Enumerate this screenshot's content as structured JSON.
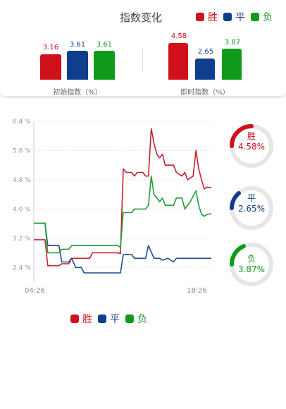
{
  "header": {
    "title": "指数变化"
  },
  "legend": [
    {
      "label": "胜",
      "color": "#d0101a"
    },
    {
      "label": "平",
      "color": "#0f3e8c"
    },
    {
      "label": "负",
      "color": "#109a1c"
    }
  ],
  "initial_group": {
    "caption": "初始指数（%）",
    "values": [
      "3.16",
      "3.61",
      "3.61"
    ]
  },
  "current_group": {
    "caption": "即时指数（%）",
    "values": [
      "4.58",
      "2.65",
      "3.87"
    ]
  },
  "gauges": [
    {
      "name": "胜",
      "pct": "4.58%",
      "color": "#d0101a"
    },
    {
      "name": "平",
      "pct": "2.65%",
      "color": "#0f3e8c"
    },
    {
      "name": "负",
      "pct": "3.87%",
      "color": "#109a1c"
    }
  ],
  "chart_data": {
    "type": "line",
    "x_start_label": "04:26",
    "x_end_label": "18:26",
    "ylim": [
      2.0,
      6.4
    ],
    "y_ticks": [
      {
        "label": "6.4 %",
        "value": 6.4
      },
      {
        "label": "5.6 %",
        "value": 5.6
      },
      {
        "label": "4.8 %",
        "value": 4.8
      },
      {
        "label": "4.0 %",
        "value": 4.0
      },
      {
        "label": "3.2 %",
        "value": 3.2
      },
      {
        "label": "2.4 %",
        "value": 2.4
      }
    ],
    "series": [
      {
        "name": "胜",
        "color": "#c8202a",
        "points": [
          [
            0,
            3.16
          ],
          [
            0.08,
            3.16
          ],
          [
            0.1,
            2.45
          ],
          [
            0.18,
            2.45
          ],
          [
            0.2,
            2.5
          ],
          [
            0.25,
            2.5
          ],
          [
            0.27,
            2.65
          ],
          [
            0.4,
            2.65
          ],
          [
            0.42,
            2.8
          ],
          [
            0.6,
            2.8
          ],
          [
            0.62,
            2.78
          ],
          [
            0.64,
            5.1
          ],
          [
            0.66,
            5.0
          ],
          [
            0.7,
            5.0
          ],
          [
            0.72,
            4.9
          ],
          [
            0.74,
            5.0
          ],
          [
            0.78,
            5.0
          ],
          [
            0.8,
            4.9
          ],
          [
            0.82,
            4.9
          ],
          [
            0.84,
            6.2
          ],
          [
            0.86,
            5.8
          ],
          [
            0.88,
            5.5
          ],
          [
            0.9,
            5.4
          ],
          [
            0.92,
            5.5
          ],
          [
            0.94,
            5.2
          ],
          [
            1.0,
            5.2
          ],
          [
            1.02,
            5.0
          ],
          [
            1.06,
            4.9
          ],
          [
            1.08,
            5.0
          ],
          [
            1.1,
            4.8
          ],
          [
            1.14,
            4.9
          ],
          [
            1.16,
            5.6
          ],
          [
            1.18,
            5.1
          ],
          [
            1.2,
            4.8
          ],
          [
            1.22,
            4.55
          ],
          [
            1.24,
            4.6
          ],
          [
            1.27,
            4.58
          ]
        ]
      },
      {
        "name": "平",
        "color": "#1a4a94",
        "points": [
          [
            0,
            3.61
          ],
          [
            0.08,
            3.61
          ],
          [
            0.1,
            3.0
          ],
          [
            0.18,
            3.0
          ],
          [
            0.2,
            2.55
          ],
          [
            0.25,
            2.55
          ],
          [
            0.27,
            2.65
          ],
          [
            0.3,
            2.4
          ],
          [
            0.34,
            2.4
          ],
          [
            0.36,
            2.25
          ],
          [
            0.62,
            2.25
          ],
          [
            0.64,
            2.75
          ],
          [
            0.7,
            2.75
          ],
          [
            0.72,
            2.65
          ],
          [
            0.8,
            2.65
          ],
          [
            0.82,
            3.0
          ],
          [
            0.86,
            2.65
          ],
          [
            0.9,
            2.65
          ],
          [
            0.92,
            2.6
          ],
          [
            0.96,
            2.65
          ],
          [
            1.0,
            2.55
          ],
          [
            1.02,
            2.65
          ],
          [
            1.27,
            2.65
          ]
        ]
      },
      {
        "name": "负",
        "color": "#1ea034",
        "points": [
          [
            0,
            3.61
          ],
          [
            0.08,
            3.61
          ],
          [
            0.1,
            2.8
          ],
          [
            0.18,
            2.8
          ],
          [
            0.2,
            2.9
          ],
          [
            0.25,
            2.9
          ],
          [
            0.27,
            3.0
          ],
          [
            0.4,
            3.0
          ],
          [
            0.42,
            3.0
          ],
          [
            0.6,
            3.0
          ],
          [
            0.62,
            2.95
          ],
          [
            0.64,
            3.9
          ],
          [
            0.7,
            3.9
          ],
          [
            0.72,
            4.0
          ],
          [
            0.8,
            4.0
          ],
          [
            0.82,
            4.1
          ],
          [
            0.84,
            4.9
          ],
          [
            0.86,
            4.4
          ],
          [
            0.88,
            4.3
          ],
          [
            0.9,
            4.2
          ],
          [
            0.92,
            4.3
          ],
          [
            0.94,
            4.1
          ],
          [
            1.0,
            4.1
          ],
          [
            1.02,
            4.3
          ],
          [
            1.06,
            4.3
          ],
          [
            1.08,
            4.0
          ],
          [
            1.12,
            4.2
          ],
          [
            1.16,
            4.5
          ],
          [
            1.18,
            4.1
          ],
          [
            1.2,
            3.85
          ],
          [
            1.22,
            3.8
          ],
          [
            1.24,
            3.85
          ],
          [
            1.27,
            3.87
          ]
        ]
      }
    ]
  }
}
